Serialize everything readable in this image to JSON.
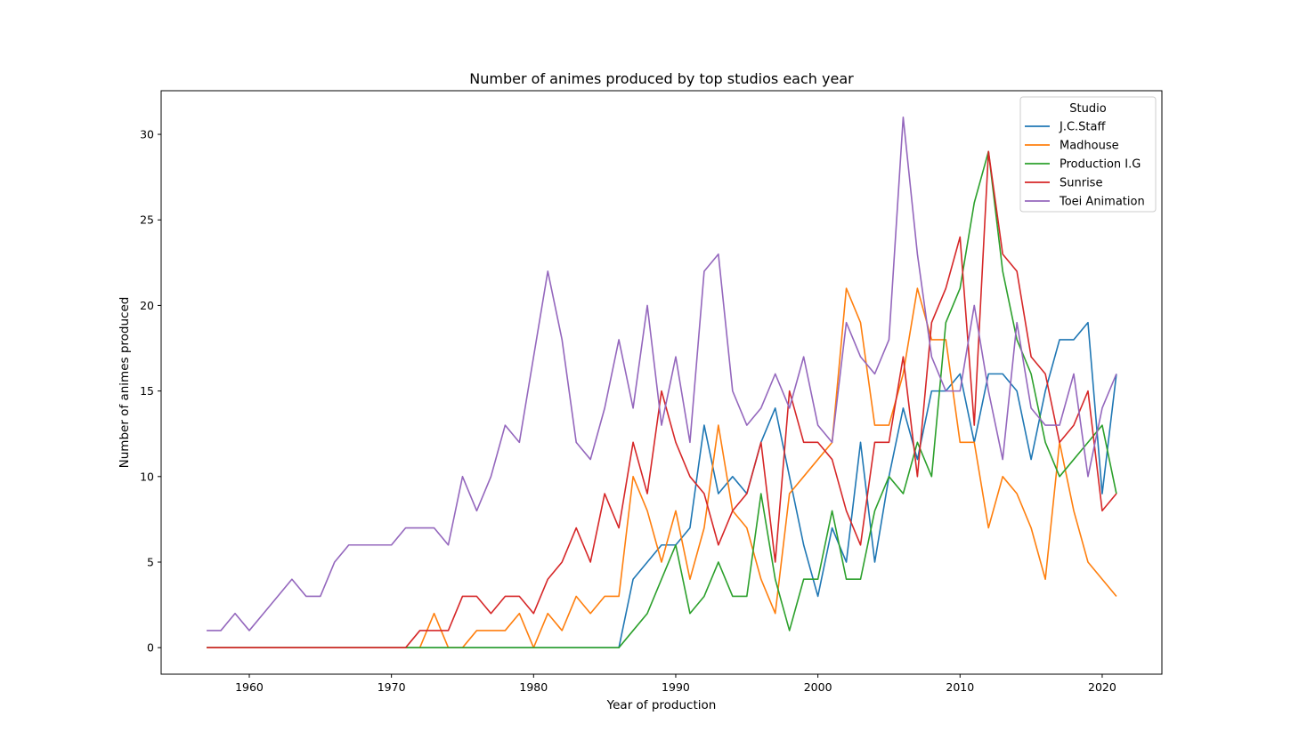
{
  "chart_data": {
    "type": "line",
    "title": "Number of animes produced by top studios each year",
    "xlabel": "Year of production",
    "ylabel": "Number of animes produced",
    "xlim": [
      1953.8,
      2024.2
    ],
    "ylim": [
      -1.55,
      32.55
    ],
    "xticks": [
      1960,
      1970,
      1980,
      1990,
      2000,
      2010,
      2020
    ],
    "yticks": [
      0,
      5,
      10,
      15,
      20,
      25,
      30
    ],
    "grid": false,
    "legend": {
      "title": "Studio",
      "position": "top-right"
    },
    "x": [
      1957,
      1958,
      1959,
      1960,
      1961,
      1962,
      1963,
      1964,
      1965,
      1966,
      1967,
      1968,
      1969,
      1970,
      1971,
      1972,
      1973,
      1974,
      1975,
      1976,
      1977,
      1978,
      1979,
      1980,
      1981,
      1982,
      1983,
      1984,
      1985,
      1986,
      1987,
      1988,
      1989,
      1990,
      1991,
      1992,
      1993,
      1994,
      1995,
      1996,
      1997,
      1998,
      1999,
      2000,
      2001,
      2002,
      2003,
      2004,
      2005,
      2006,
      2007,
      2008,
      2009,
      2010,
      2011,
      2012,
      2013,
      2014,
      2015,
      2016,
      2017,
      2018,
      2019,
      2020,
      2021
    ],
    "series": [
      {
        "name": "J.C.Staff",
        "color": "#1f77b4",
        "values": [
          0,
          0,
          0,
          0,
          0,
          0,
          0,
          0,
          0,
          0,
          0,
          0,
          0,
          0,
          0,
          0,
          0,
          0,
          0,
          0,
          0,
          0,
          0,
          0,
          0,
          0,
          0,
          0,
          0,
          0,
          4,
          5,
          6,
          6,
          7,
          13,
          9,
          10,
          9,
          12,
          14,
          10,
          6,
          3,
          7,
          5,
          12,
          5,
          10,
          14,
          11,
          15,
          15,
          16,
          12,
          16,
          16,
          15,
          11,
          15,
          18,
          18,
          19,
          9,
          16
        ]
      },
      {
        "name": "Madhouse",
        "color": "#ff7f0e",
        "values": [
          0,
          0,
          0,
          0,
          0,
          0,
          0,
          0,
          0,
          0,
          0,
          0,
          0,
          0,
          0,
          0,
          2,
          0,
          0,
          1,
          1,
          1,
          2,
          0,
          2,
          1,
          3,
          2,
          3,
          3,
          10,
          8,
          5,
          8,
          4,
          7,
          13,
          8,
          7,
          4,
          2,
          9,
          10,
          11,
          12,
          21,
          19,
          13,
          13,
          16,
          21,
          18,
          18,
          12,
          12,
          7,
          10,
          9,
          7,
          4,
          12,
          8,
          5,
          4,
          3
        ]
      },
      {
        "name": "Production I.G",
        "color": "#2ca02c",
        "values": [
          0,
          0,
          0,
          0,
          0,
          0,
          0,
          0,
          0,
          0,
          0,
          0,
          0,
          0,
          0,
          0,
          0,
          0,
          0,
          0,
          0,
          0,
          0,
          0,
          0,
          0,
          0,
          0,
          0,
          0,
          1,
          2,
          4,
          6,
          2,
          3,
          5,
          3,
          3,
          9,
          4,
          1,
          4,
          4,
          8,
          4,
          4,
          8,
          10,
          9,
          12,
          10,
          19,
          21,
          26,
          29,
          22,
          18,
          16,
          12,
          10,
          11,
          12,
          13,
          9
        ]
      },
      {
        "name": "Sunrise",
        "color": "#d62728",
        "values": [
          0,
          0,
          0,
          0,
          0,
          0,
          0,
          0,
          0,
          0,
          0,
          0,
          0,
          0,
          0,
          1,
          1,
          1,
          3,
          3,
          2,
          3,
          3,
          2,
          4,
          5,
          7,
          5,
          9,
          7,
          12,
          9,
          15,
          12,
          10,
          9,
          6,
          8,
          9,
          12,
          5,
          15,
          12,
          12,
          11,
          8,
          6,
          12,
          12,
          17,
          10,
          19,
          21,
          24,
          13,
          29,
          23,
          22,
          17,
          16,
          12,
          13,
          15,
          8,
          9
        ]
      },
      {
        "name": "Toei Animation",
        "color": "#9467bd",
        "values": [
          1,
          1,
          2,
          1,
          2,
          3,
          4,
          3,
          3,
          5,
          6,
          6,
          6,
          6,
          7,
          7,
          7,
          6,
          10,
          8,
          10,
          13,
          12,
          17,
          22,
          18,
          12,
          11,
          14,
          18,
          14,
          20,
          13,
          17,
          12,
          22,
          23,
          15,
          13,
          14,
          16,
          14,
          17,
          13,
          12,
          19,
          17,
          16,
          18,
          31,
          23,
          17,
          15,
          15,
          20,
          15,
          11,
          19,
          14,
          13,
          13,
          16,
          10,
          14,
          16
        ]
      }
    ]
  }
}
